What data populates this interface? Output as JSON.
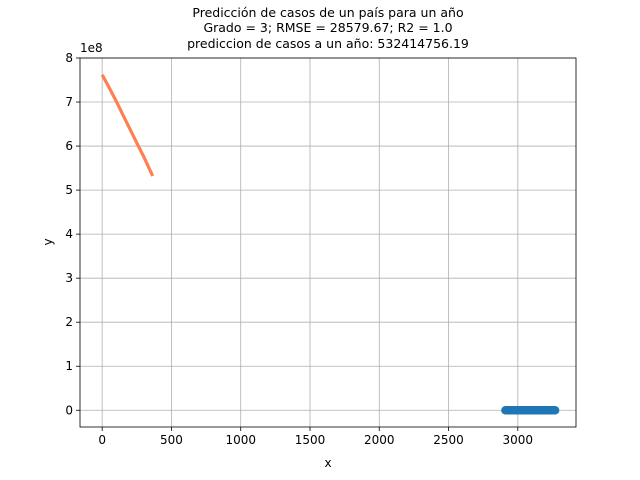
{
  "chart_data": {
    "type": "line",
    "title_lines": [
      "Predicción de casos de un país para un año",
      "Grado = 3; RMSE = 28579.67; R2 = 1.0",
      " prediccion de casos a un año: 532414756.19"
    ],
    "xlabel": "x",
    "ylabel": "y",
    "y_offset_text": "1e8",
    "y_scale_factor": 100000000,
    "xlim": [
      -160,
      3420
    ],
    "ylim": [
      -0.38,
      8.0
    ],
    "x_ticks": [
      0,
      500,
      1000,
      1500,
      2000,
      2500,
      3000
    ],
    "y_ticks": [
      0,
      1,
      2,
      3,
      4,
      5,
      6,
      7,
      8
    ],
    "grid": true,
    "series": [
      {
        "kind": "line",
        "color": "#ff7f50",
        "x": [
          0,
          50,
          100,
          150,
          200,
          250,
          300,
          365
        ],
        "y": [
          7.62,
          7.33,
          7.03,
          6.71,
          6.39,
          6.07,
          5.76,
          5.32
        ]
      },
      {
        "kind": "scatter",
        "color": "#1f77b4",
        "x_range": [
          2910,
          3270
        ],
        "y_value": 0.0
      }
    ]
  }
}
